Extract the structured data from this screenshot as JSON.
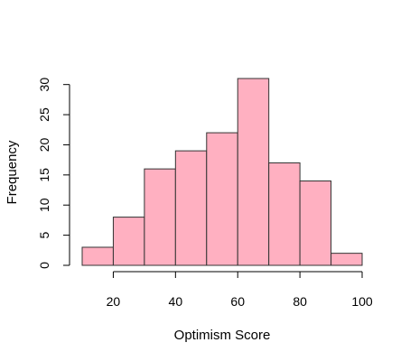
{
  "chart_data": {
    "type": "histogram",
    "title": "",
    "xlabel": "Optimism Score",
    "ylabel": "Frequency",
    "bins": [
      {
        "from": 10,
        "to": 20,
        "count": 3
      },
      {
        "from": 20,
        "to": 30,
        "count": 8
      },
      {
        "from": 30,
        "to": 40,
        "count": 16
      },
      {
        "from": 40,
        "to": 50,
        "count": 19
      },
      {
        "from": 50,
        "to": 60,
        "count": 22
      },
      {
        "from": 60,
        "to": 70,
        "count": 31
      },
      {
        "from": 70,
        "to": 80,
        "count": 17
      },
      {
        "from": 80,
        "to": 90,
        "count": 14
      },
      {
        "from": 90,
        "to": 100,
        "count": 2
      }
    ],
    "x_ticks": [
      20,
      40,
      60,
      80,
      100
    ],
    "y_ticks": [
      0,
      5,
      10,
      15,
      20,
      25,
      30
    ],
    "xlim": [
      10,
      100
    ],
    "ylim": [
      0,
      31
    ],
    "bar_fill": "#ffb0c1",
    "bar_stroke": "#333333",
    "grid": false,
    "legend": "none"
  }
}
